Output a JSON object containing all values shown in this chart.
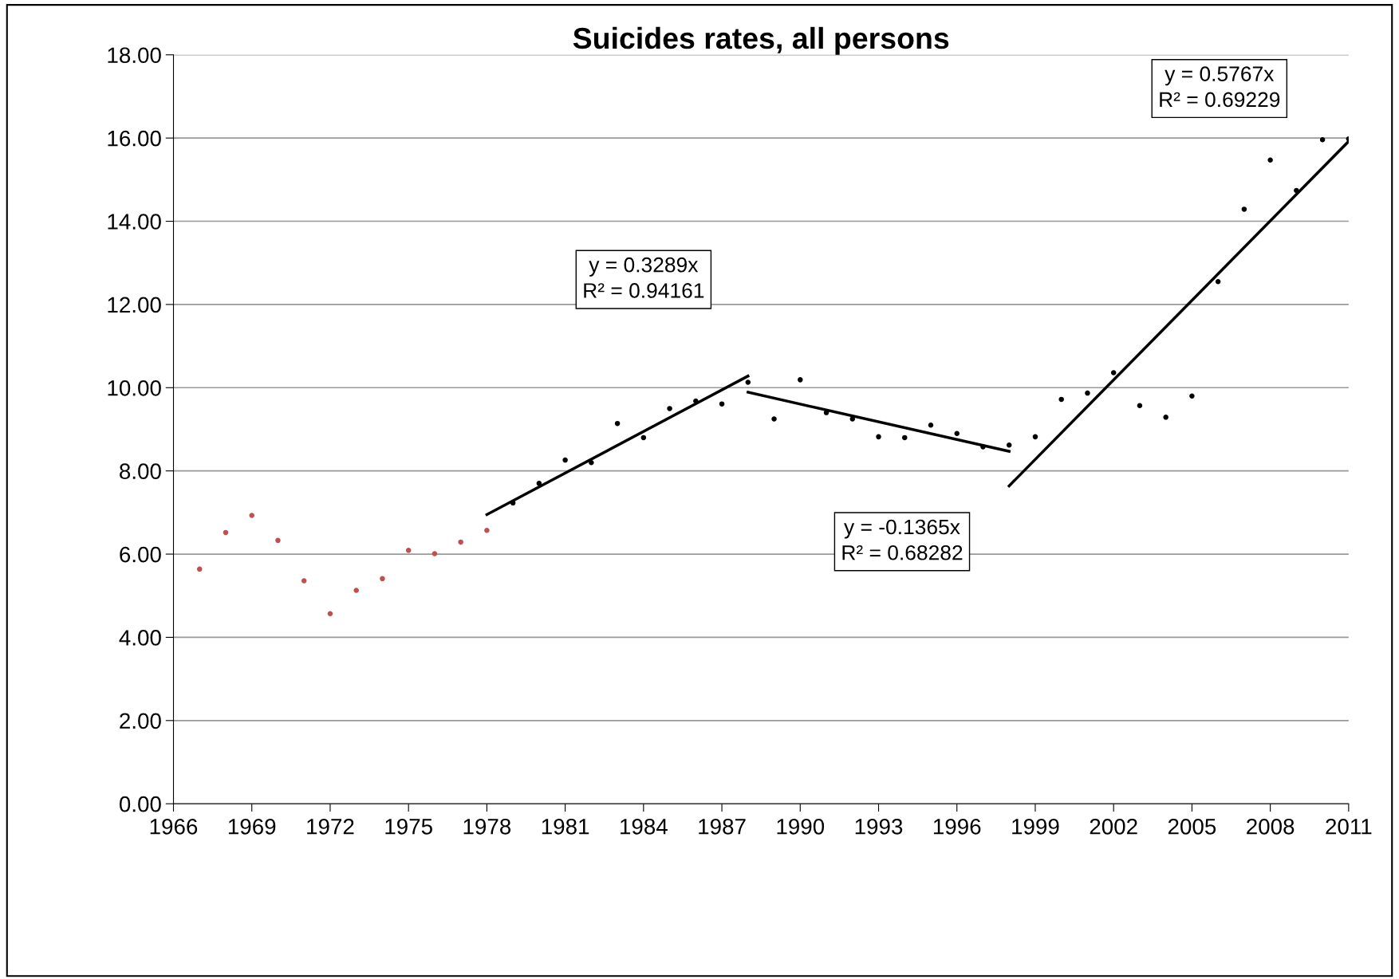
{
  "chart_data": {
    "type": "scatter",
    "title": "Suicides rates, all persons",
    "xlim": [
      1966,
      2011
    ],
    "xticks": [
      1966,
      1969,
      1972,
      1975,
      1978,
      1981,
      1984,
      1987,
      1990,
      1993,
      1996,
      1999,
      2002,
      2005,
      2008,
      2011
    ],
    "ylim": [
      0,
      18
    ],
    "yticks": [
      {
        "value": 0,
        "label": "0.00"
      },
      {
        "value": 2,
        "label": "2.00"
      },
      {
        "value": 4,
        "label": "4.00"
      },
      {
        "value": 6,
        "label": "6.00"
      },
      {
        "value": 8,
        "label": "8.00"
      },
      {
        "value": 10,
        "label": "10.00"
      },
      {
        "value": 12,
        "label": "12.00"
      },
      {
        "value": 14,
        "label": "14.00"
      },
      {
        "value": 16,
        "label": "16.00"
      },
      {
        "value": 18,
        "label": "18.00"
      }
    ],
    "grid": "y",
    "series": [
      {
        "marker": "circle",
        "color": "#c0504d",
        "x": [
          1967,
          1968,
          1969,
          1970,
          1971,
          1972,
          1973,
          1974,
          1975,
          1976,
          1977,
          1978
        ],
        "values": [
          5.64,
          6.52,
          6.93,
          6.33,
          5.36,
          4.57,
          5.13,
          5.41,
          6.09,
          6.01,
          6.29,
          6.57
        ]
      },
      {
        "marker": "circle",
        "color": "#000000",
        "x": [
          1979,
          1980,
          1981,
          1982,
          1983,
          1984,
          1985,
          1986,
          1987,
          1988,
          1989,
          1990,
          1991,
          1992,
          1993,
          1994,
          1995,
          1996,
          1997,
          1998,
          1999,
          2000,
          2001,
          2002,
          2003,
          2004,
          2005,
          2006,
          2007,
          2008,
          2009,
          2010,
          2011
        ],
        "values": [
          7.23,
          7.7,
          8.26,
          8.2,
          9.14,
          8.8,
          9.5,
          9.68,
          9.61,
          10.13,
          9.25,
          10.19,
          9.4,
          9.25,
          8.82,
          8.8,
          9.1,
          8.9,
          8.58,
          8.62,
          8.82,
          9.72,
          9.87,
          10.36,
          9.57,
          9.29,
          9.8,
          12.55,
          14.29,
          15.47,
          14.74,
          15.96,
          15.98
        ]
      },
      {
        "type": "line",
        "marker": "none",
        "color": "#000000",
        "x": [
          1978,
          1988
        ],
        "values": [
          6.95,
          10.28
        ]
      },
      {
        "type": "line",
        "marker": "none",
        "color": "#000000",
        "x": [
          1988,
          1998
        ],
        "values": [
          9.89,
          8.47
        ]
      },
      {
        "type": "line",
        "marker": "none",
        "color": "#000000",
        "x": [
          1998,
          2011
        ],
        "values": [
          7.64,
          15.92
        ]
      }
    ],
    "annotations": [
      "y = 0.3289x\nR² = 0.94161",
      "y = -0.1365x\nR² = 0.68282",
      "y = 0.5767x\nR² = 0.69229"
    ]
  }
}
